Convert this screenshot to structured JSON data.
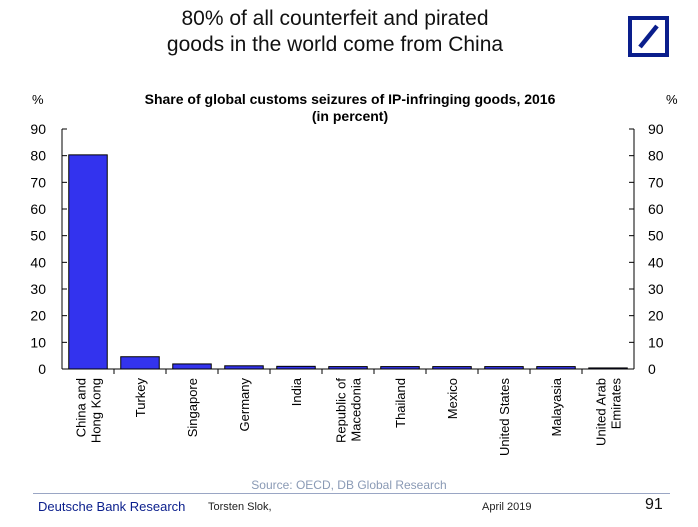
{
  "slide": {
    "title_line1": "80% of all counterfeit and pirated",
    "title_line2": "goods in the world come from China",
    "unit_left": "%",
    "unit_right": "%",
    "source": "Source: OECD, DB Global Research"
  },
  "footer": {
    "brand": "Deutsche Bank Research",
    "author": "Torsten Slok,",
    "date": "April 2019",
    "page": "91"
  },
  "colors": {
    "bar_fill": "#3333ee",
    "bar_stroke": "#000000",
    "logo_blue": "#0a1e8c"
  },
  "chart_data": {
    "type": "bar",
    "title_line1": "Share of global customs seizures of IP-infringing goods, 2016",
    "title_line2": "(in percent)",
    "categories": [
      [
        "China and",
        "Hong Kong"
      ],
      [
        "Turkey"
      ],
      [
        "Singapore"
      ],
      [
        "Germany"
      ],
      [
        "India"
      ],
      [
        "Republic of",
        "Macedonia"
      ],
      [
        "Thailand"
      ],
      [
        "Mexico"
      ],
      [
        "United States"
      ],
      [
        "Malayasia"
      ],
      [
        "United Arab",
        "Emirates"
      ]
    ],
    "values": [
      80.3,
      4.6,
      1.9,
      1.2,
      1.0,
      0.9,
      0.9,
      0.9,
      0.9,
      0.9,
      0.4
    ],
    "ylim": [
      0,
      90
    ],
    "yticks": [
      0,
      10,
      20,
      30,
      40,
      50,
      60,
      70,
      80,
      90
    ],
    "grid": false,
    "legend": "none"
  }
}
